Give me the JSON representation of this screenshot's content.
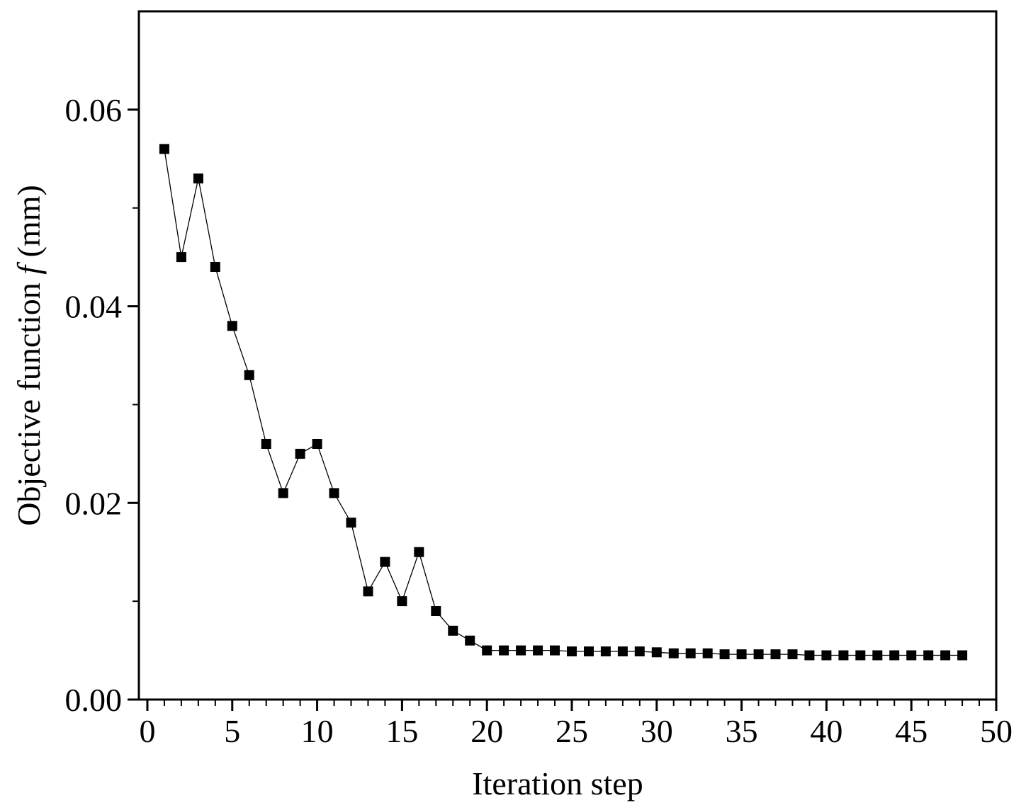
{
  "chart_data": {
    "type": "line",
    "title": "",
    "xlabel": "Iteration step",
    "ylabel": {
      "prefix": "Objective function ",
      "symbol": "f",
      "suffix": " (mm)"
    },
    "xlim": [
      -0.5,
      50
    ],
    "ylim": [
      0,
      0.07
    ],
    "xticks": [
      0,
      5,
      10,
      15,
      20,
      25,
      30,
      35,
      40,
      45,
      50
    ],
    "xtick_labels": [
      "0",
      "5",
      "10",
      "15",
      "20",
      "25",
      "30",
      "35",
      "40",
      "45",
      "50"
    ],
    "yticks": [
      0,
      0.02,
      0.04,
      0.06
    ],
    "ytick_labels": [
      "0.00",
      "0.02",
      "0.04",
      "0.06"
    ],
    "y_minor_ticks": [
      0.01,
      0.03,
      0.05
    ],
    "grid": false,
    "legend": "none",
    "marker": "square",
    "color": "#000000",
    "series": [
      {
        "x": [
          1,
          2,
          3,
          4,
          5,
          6,
          7,
          8,
          9,
          10,
          11,
          12,
          13,
          14,
          15,
          16,
          17,
          18,
          19,
          20,
          21,
          22,
          23,
          24,
          25,
          26,
          27,
          28,
          29,
          30,
          31,
          32,
          33,
          34,
          35,
          36,
          37,
          38,
          39,
          40,
          41,
          42,
          43,
          44,
          45,
          46,
          47,
          48
        ],
        "values": [
          0.056,
          0.045,
          0.053,
          0.044,
          0.038,
          0.033,
          0.026,
          0.021,
          0.025,
          0.026,
          0.021,
          0.018,
          0.011,
          0.014,
          0.01,
          0.015,
          0.009,
          0.007,
          0.006,
          0.005,
          0.005,
          0.005,
          0.005,
          0.005,
          0.0049,
          0.0049,
          0.0049,
          0.0049,
          0.0049,
          0.0048,
          0.0047,
          0.0047,
          0.0047,
          0.0046,
          0.0046,
          0.0046,
          0.0046,
          0.0046,
          0.0045,
          0.0045,
          0.0045,
          0.0045,
          0.0045,
          0.0045,
          0.0045,
          0.0045,
          0.0045,
          0.0045
        ]
      }
    ]
  }
}
